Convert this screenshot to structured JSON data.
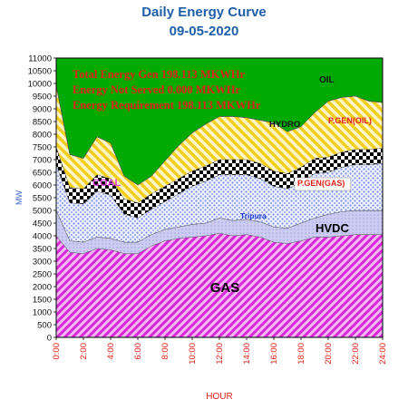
{
  "chart_data": {
    "type": "area",
    "title": "Daily Energy Curve",
    "subtitle": "09-05-2020",
    "xlabel": "HOUR",
    "ylabel": "MW",
    "ylim": [
      0,
      11000
    ],
    "y_ticks": [
      0,
      500,
      1000,
      1500,
      2000,
      2500,
      3000,
      3500,
      4000,
      4500,
      5000,
      5500,
      6000,
      6500,
      7000,
      7500,
      8000,
      8500,
      9000,
      9500,
      10000,
      10500,
      11000
    ],
    "x_tick_labels": [
      "0:00",
      "2:00",
      "4:00",
      "6:00",
      "8:00",
      "10:00",
      "12:00",
      "14:00",
      "16:00",
      "18:00",
      "20:00",
      "22:00",
      "24:00"
    ],
    "x": [
      0,
      1,
      2,
      3,
      4,
      5,
      6,
      7,
      8,
      9,
      10,
      11,
      12,
      13,
      14,
      15,
      16,
      17,
      18,
      19,
      20,
      21,
      22,
      23,
      24
    ],
    "stack_order": [
      "GAS",
      "HVDC",
      "Tripura",
      "P.GEN(GAS)",
      "COAL",
      "P.GEN(OIL)",
      "HYDRO",
      "OIL"
    ],
    "series": [
      {
        "name": "GAS",
        "color": "#e040e0",
        "values": [
          4000,
          3350,
          3300,
          3500,
          3450,
          3300,
          3300,
          3600,
          3800,
          3900,
          3950,
          4000,
          4100,
          4000,
          4050,
          3950,
          3750,
          3700,
          3800,
          3950,
          3950,
          4000,
          4050,
          4050,
          4050
        ]
      },
      {
        "name": "HVDC",
        "color": "#c4c4ee",
        "values": [
          1000,
          450,
          450,
          450,
          450,
          450,
          450,
          450,
          450,
          450,
          500,
          500,
          600,
          600,
          600,
          600,
          600,
          600,
          700,
          750,
          900,
          950,
          950,
          950,
          950
        ]
      },
      {
        "name": "Tripura",
        "color": "#9aa8e8",
        "values": [
          0,
          0,
          0,
          0,
          0,
          0,
          0,
          0,
          0,
          0,
          0,
          0,
          0,
          0,
          0,
          0,
          0,
          0,
          0,
          0,
          0,
          0,
          0,
          0,
          0
        ]
      },
      {
        "name": "P.GEN(GAS)",
        "color": "#a8b8f2",
        "values": [
          1800,
          1500,
          1500,
          1800,
          1700,
          1100,
          950,
          1000,
          1100,
          1300,
          1500,
          1650,
          1700,
          1800,
          1750,
          1700,
          1600,
          1550,
          1600,
          1750,
          1650,
          1750,
          1800,
          1800,
          1850
        ]
      },
      {
        "name": "COAL",
        "color": "#000000",
        "values": [
          700,
          600,
          600,
          650,
          650,
          600,
          600,
          600,
          600,
          600,
          600,
          600,
          600,
          600,
          600,
          600,
          600,
          600,
          600,
          600,
          600,
          600,
          600,
          600,
          600
        ]
      },
      {
        "name": "P.GEN(OIL)",
        "color": "#f4d832",
        "values": [
          2400,
          1300,
          1200,
          1500,
          1400,
          900,
          700,
          700,
          1000,
          1300,
          1500,
          1650,
          1700,
          1700,
          1650,
          1700,
          1900,
          1650,
          1600,
          1800,
          2200,
          2150,
          2100,
          1900,
          1800
        ]
      },
      {
        "name": "HYDRO",
        "color": "#222222",
        "values": [
          0,
          0,
          0,
          0,
          0,
          0,
          0,
          0,
          0,
          0,
          0,
          0,
          0,
          0,
          0,
          0,
          0,
          0,
          0,
          0,
          0,
          0,
          0,
          0,
          0
        ]
      },
      {
        "name": "OIL",
        "color": "#f4f4f4",
        "values": [
          0,
          0,
          0,
          0,
          0,
          0,
          0,
          0,
          0,
          0,
          0,
          0,
          0,
          0,
          0,
          0,
          0,
          0,
          0,
          0,
          0,
          0,
          0,
          0,
          0
        ]
      }
    ],
    "annotations": {
      "total_gen": "Total Energy Gen 198.113 MKWHr",
      "not_served": "Energy Not Served  0.000 MKWHr",
      "requirement": "Energy Requirement     198.113 MKWHr"
    },
    "series_labels": [
      {
        "text": "GAS",
        "series": "GAS"
      },
      {
        "text": "HVDC",
        "series": "HVDC"
      },
      {
        "text": "Tripura",
        "series": "Tripura"
      },
      {
        "text": "P.GEN(GAS)",
        "series": "P.GEN(GAS)"
      },
      {
        "text": "COAL",
        "series": "COAL"
      },
      {
        "text": "P.GEN(OIL)",
        "series": "P.GEN(OIL)"
      },
      {
        "text": "HYDRO",
        "series": "HYDRO"
      },
      {
        "text": "OIL",
        "series": "OIL"
      }
    ],
    "grid": false,
    "legend": "none",
    "plot_background": "#00aa00"
  }
}
